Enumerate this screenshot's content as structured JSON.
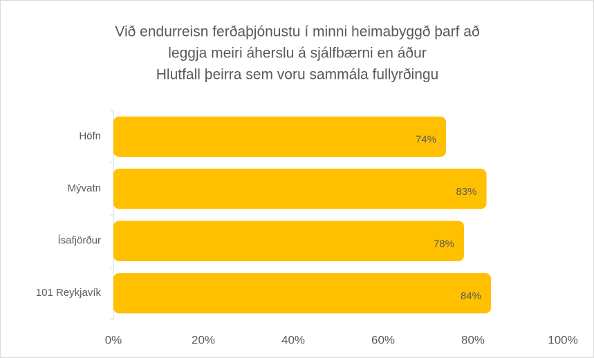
{
  "chart_data": {
    "type": "bar",
    "orientation": "horizontal",
    "title": [
      "Við endurreisn ferðaþjónustu í minni heimabyggð þarf að",
      "leggja meiri áherslu á sjálfbærni en áður"
    ],
    "subtitle": "Hlutfall þeirra sem voru sammála fullyrðingu",
    "categories": [
      "Höfn",
      "Mývatn",
      "Ísafjörður",
      "101 Reykjavík"
    ],
    "values": [
      74,
      83,
      78,
      84
    ],
    "value_labels": [
      "74%",
      "83%",
      "78%",
      "84%"
    ],
    "color": "#FFC000",
    "xlim": [
      0,
      100
    ],
    "xticks": [
      {
        "value": 0,
        "label": "0%"
      },
      {
        "value": 20,
        "label": "20%"
      },
      {
        "value": 40,
        "label": "40%"
      },
      {
        "value": 60,
        "label": "60%"
      },
      {
        "value": 80,
        "label": "80%"
      },
      {
        "value": 100,
        "label": "100%"
      }
    ],
    "grid": false
  }
}
